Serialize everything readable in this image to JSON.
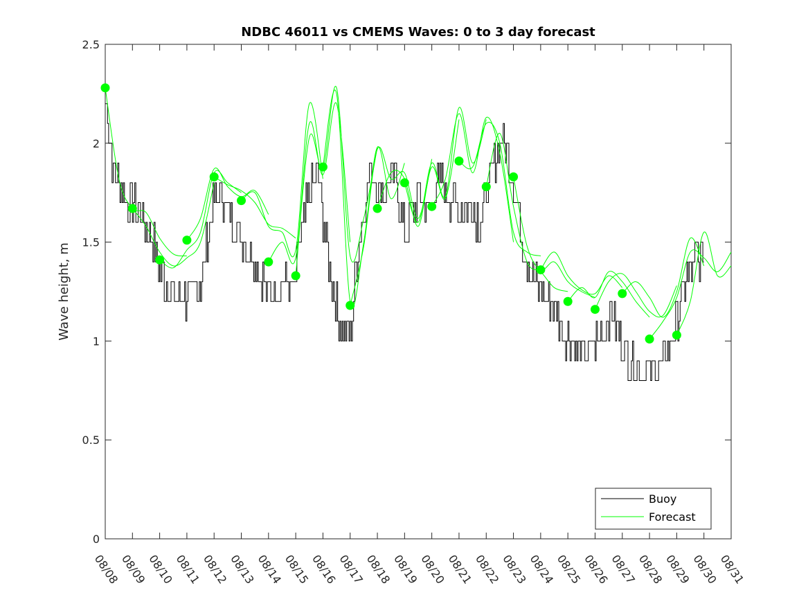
{
  "chart_data": {
    "type": "line",
    "title": "NDBC 46011 vs CMEMS Waves: 0 to 3 day forecast",
    "xlabel": "",
    "ylabel": "Wave height, m",
    "xlim": [
      0,
      23
    ],
    "ylim": [
      0,
      2.5
    ],
    "x_ticks": [
      0,
      1,
      2,
      3,
      4,
      5,
      6,
      7,
      8,
      9,
      10,
      11,
      12,
      13,
      14,
      15,
      16,
      17,
      18,
      19,
      20,
      21,
      22,
      23
    ],
    "x_tick_labels": [
      "08/08",
      "08/09",
      "08/10",
      "08/11",
      "08/12",
      "08/13",
      "08/14",
      "08/15",
      "08/16",
      "08/17",
      "08/18",
      "08/19",
      "08/20",
      "08/21",
      "08/22",
      "08/23",
      "08/24",
      "08/25",
      "08/26",
      "08/27",
      "08/28",
      "08/29",
      "08/30",
      "08/31"
    ],
    "y_ticks": [
      0,
      0.5,
      1,
      1.5,
      2,
      2.5
    ],
    "y_tick_labels": [
      "0",
      "0.5",
      "1",
      "1.5",
      "2",
      "2.5"
    ],
    "legend": {
      "position": "bottom-right",
      "entries": [
        "Buoy",
        "Forecast"
      ]
    },
    "colors": {
      "buoy": "#000000",
      "forecast": "#00ff00",
      "axis": "#262626",
      "background": "#ffffff"
    },
    "buoy_anchors": {
      "x": [
        0,
        0.3,
        0.8,
        1.2,
        1.6,
        2.2,
        2.7,
        3.1,
        3.5,
        4.0,
        4.3,
        4.7,
        5.1,
        5.5,
        6.0,
        6.5,
        6.9,
        7.2,
        7.5,
        7.8,
        8.2,
        8.6,
        9.0,
        9.3,
        9.7,
        10.2,
        10.6,
        11.0,
        11.5,
        11.9,
        12.2,
        12.6,
        13.0,
        13.4,
        13.8,
        14.2,
        14.6,
        15.0,
        15.4,
        15.8,
        16.3,
        16.9,
        17.3,
        17.7,
        18.1,
        18.6,
        19.0,
        19.5,
        19.9,
        20.4,
        20.9,
        21.3,
        21.7,
        22.0
      ],
      "y": [
        2.25,
        1.85,
        1.7,
        1.65,
        1.55,
        1.3,
        1.2,
        1.22,
        1.3,
        1.7,
        1.75,
        1.6,
        1.5,
        1.4,
        1.25,
        1.3,
        1.25,
        1.55,
        1.75,
        1.85,
        1.4,
        1.1,
        1.05,
        1.5,
        1.85,
        1.75,
        1.85,
        1.55,
        1.75,
        1.65,
        1.8,
        1.75,
        1.65,
        1.7,
        1.6,
        1.85,
        2.05,
        1.8,
        1.45,
        1.3,
        1.2,
        1.05,
        0.95,
        0.95,
        1.0,
        1.15,
        1.0,
        0.85,
        0.85,
        0.85,
        1.05,
        1.3,
        1.42,
        1.45
      ]
    },
    "buoy_noise": 0.1,
    "forecast_runs": [
      {
        "name": "Forecast",
        "x": [
          0.0,
          0.5,
          1.0,
          1.5,
          2.0,
          2.5,
          3.0
        ],
        "y": [
          2.28,
          1.82,
          1.67,
          1.65,
          1.52,
          1.44,
          1.43
        ]
      },
      {
        "name": "Forecast",
        "x": [
          1.0,
          1.5,
          2.0,
          2.5,
          3.0,
          3.5,
          4.0
        ],
        "y": [
          1.67,
          1.58,
          1.45,
          1.38,
          1.42,
          1.5,
          1.8
        ]
      },
      {
        "name": "Forecast",
        "x": [
          2.0,
          2.5,
          3.0,
          3.5,
          4.0,
          4.5,
          5.0
        ],
        "y": [
          1.41,
          1.37,
          1.46,
          1.55,
          1.85,
          1.8,
          1.75
        ]
      },
      {
        "name": "Forecast",
        "x": [
          3.0,
          3.5,
          4.0,
          4.5,
          5.0,
          5.5,
          6.0
        ],
        "y": [
          1.51,
          1.62,
          1.87,
          1.78,
          1.73,
          1.76,
          1.64
        ]
      },
      {
        "name": "Forecast",
        "x": [
          4.0,
          4.5,
          5.0,
          5.5,
          6.0,
          6.5,
          7.0
        ],
        "y": [
          1.83,
          1.79,
          1.76,
          1.7,
          1.59,
          1.57,
          1.52
        ]
      },
      {
        "name": "Forecast",
        "x": [
          5.0,
          5.5,
          6.0,
          6.5,
          7.0,
          7.5,
          8.0
        ],
        "y": [
          1.71,
          1.75,
          1.58,
          1.55,
          1.46,
          2.2,
          1.82
        ]
      },
      {
        "name": "Forecast",
        "x": [
          6.0,
          6.5,
          7.0,
          7.5,
          8.0,
          8.5,
          9.0
        ],
        "y": [
          1.4,
          1.5,
          1.42,
          2.1,
          1.84,
          2.2,
          1.5
        ]
      },
      {
        "name": "Forecast",
        "x": [
          7.0,
          7.5,
          8.0,
          8.5,
          9.0,
          9.5,
          10.0
        ],
        "y": [
          1.33,
          2.03,
          1.87,
          2.28,
          1.43,
          1.62,
          1.98
        ]
      },
      {
        "name": "Forecast",
        "x": [
          8.0,
          8.5,
          9.0,
          9.5,
          10.0,
          10.5,
          11.0
        ],
        "y": [
          1.88,
          2.25,
          1.2,
          1.5,
          1.98,
          1.72,
          1.9
        ]
      },
      {
        "name": "Forecast",
        "x": [
          9.0,
          9.5,
          10.0,
          10.5,
          11.0,
          11.5,
          12.0
        ],
        "y": [
          1.18,
          1.48,
          1.97,
          1.82,
          1.85,
          1.62,
          1.92
        ]
      },
      {
        "name": "Forecast",
        "x": [
          10.0,
          10.5,
          11.0,
          11.5,
          12.0,
          12.5,
          13.0
        ],
        "y": [
          1.67,
          1.85,
          1.82,
          1.58,
          1.88,
          1.72,
          2.12
        ]
      },
      {
        "name": "Forecast",
        "x": [
          11.0,
          11.5,
          12.0,
          12.5,
          13.0,
          13.5,
          14.0
        ],
        "y": [
          1.8,
          1.6,
          1.9,
          1.73,
          2.18,
          1.9,
          2.12
        ]
      },
      {
        "name": "Forecast",
        "x": [
          12.0,
          12.5,
          13.0,
          13.5,
          14.0,
          14.5,
          15.0
        ],
        "y": [
          1.68,
          1.82,
          2.15,
          1.85,
          2.13,
          1.95,
          1.5
        ]
      },
      {
        "name": "Forecast",
        "x": [
          13.0,
          13.5,
          14.0,
          14.5,
          15.0,
          15.5,
          16.0
        ],
        "y": [
          1.91,
          1.88,
          2.1,
          2.0,
          1.55,
          1.45,
          1.43
        ]
      },
      {
        "name": "Forecast",
        "x": [
          14.0,
          14.5,
          15.0,
          15.5,
          16.0,
          16.5,
          17.0
        ],
        "y": [
          1.78,
          2.05,
          1.68,
          1.4,
          1.35,
          1.27,
          1.25
        ]
      },
      {
        "name": "Forecast",
        "x": [
          15.0,
          15.5,
          16.0,
          16.5,
          17.0,
          17.5,
          18.0
        ],
        "y": [
          1.83,
          1.48,
          1.36,
          1.4,
          1.3,
          1.25,
          1.22
        ]
      },
      {
        "name": "Forecast",
        "x": [
          16.0,
          16.5,
          17.0,
          17.5,
          18.0,
          18.5,
          19.0
        ],
        "y": [
          1.36,
          1.45,
          1.33,
          1.26,
          1.24,
          1.33,
          1.27
        ]
      },
      {
        "name": "Forecast",
        "x": [
          17.0,
          17.5,
          18.0,
          18.5,
          19.0,
          19.5,
          20.0
        ],
        "y": [
          1.2,
          1.27,
          1.22,
          1.35,
          1.3,
          1.2,
          1.12
        ]
      },
      {
        "name": "Forecast",
        "x": [
          18.0,
          18.5,
          19.0,
          19.5,
          20.0,
          20.5,
          21.0
        ],
        "y": [
          1.16,
          1.3,
          1.34,
          1.25,
          1.15,
          1.13,
          1.28
        ]
      },
      {
        "name": "Forecast",
        "x": [
          19.0,
          19.5,
          20.0,
          20.5,
          21.0,
          21.5,
          22.0
        ],
        "y": [
          1.24,
          1.3,
          1.22,
          1.12,
          1.25,
          1.52,
          1.38
        ]
      },
      {
        "name": "Forecast",
        "x": [
          20.0,
          20.5,
          21.0,
          21.5,
          22.0,
          22.5,
          23.0
        ],
        "y": [
          1.01,
          1.1,
          1.22,
          1.45,
          1.42,
          1.35,
          1.45
        ]
      },
      {
        "name": "Forecast",
        "x": [
          21.0,
          21.5,
          22.0,
          22.5,
          23.0
        ],
        "y": [
          1.03,
          1.2,
          1.55,
          1.33,
          1.38
        ]
      }
    ],
    "initial_points": {
      "x": [
        0,
        1,
        2,
        3,
        4,
        5,
        6,
        7,
        8,
        9,
        10,
        11,
        12,
        13,
        14,
        15,
        16,
        17,
        18,
        19,
        20,
        21
      ],
      "y": [
        2.28,
        1.67,
        1.41,
        1.51,
        1.83,
        1.71,
        1.4,
        1.33,
        1.88,
        1.18,
        1.67,
        1.8,
        1.68,
        1.91,
        1.78,
        1.83,
        1.36,
        1.2,
        1.16,
        1.24,
        1.01,
        1.03
      ]
    }
  }
}
